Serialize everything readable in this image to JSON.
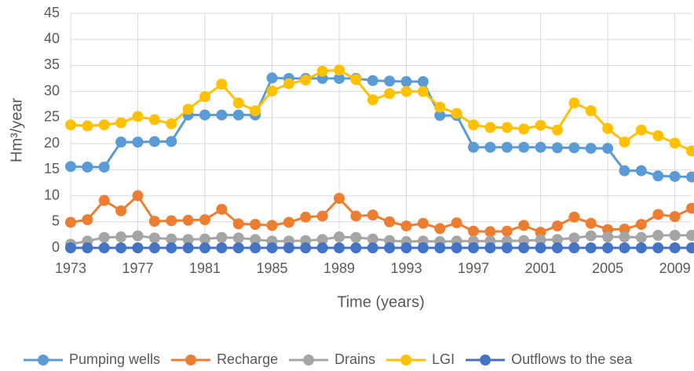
{
  "chart_data": {
    "type": "line",
    "xlabel": "Time (years)",
    "ylabel": "Hm³/year",
    "x": [
      1973,
      1974,
      1975,
      1976,
      1977,
      1978,
      1979,
      1980,
      1981,
      1982,
      1983,
      1984,
      1985,
      1986,
      1987,
      1988,
      1989,
      1990,
      1991,
      1992,
      1993,
      1994,
      1995,
      1996,
      1997,
      1998,
      1999,
      2000,
      2001,
      2002,
      2003,
      2004,
      2005,
      2006,
      2007,
      2008,
      2009,
      2010
    ],
    "xlim": [
      1973,
      2010
    ],
    "xticks": [
      1973,
      1977,
      1981,
      1985,
      1989,
      1993,
      1997,
      2001,
      2005,
      2009
    ],
    "ylim": [
      0,
      45
    ],
    "yticks": [
      0,
      5,
      10,
      15,
      20,
      25,
      30,
      35,
      40,
      45
    ],
    "grid": true,
    "legend": "bottom",
    "series": [
      {
        "name": "Pumping wells",
        "color": "#5b9bd5",
        "values": [
          15.6,
          15.5,
          15.5,
          20.3,
          20.3,
          20.4,
          20.4,
          25.5,
          25.5,
          25.5,
          25.5,
          25.5,
          32.6,
          32.5,
          32.5,
          32.5,
          32.5,
          32.5,
          32.1,
          32.0,
          31.9,
          31.9,
          25.4,
          25.4,
          19.3,
          19.3,
          19.3,
          19.3,
          19.3,
          19.2,
          19.2,
          19.1,
          19.1,
          14.8,
          14.8,
          13.8,
          13.7,
          13.6
        ]
      },
      {
        "name": "Recharge",
        "color": "#ed7d31",
        "values": [
          4.9,
          5.4,
          9.1,
          7.1,
          10.0,
          5.1,
          5.2,
          5.3,
          5.4,
          7.4,
          4.6,
          4.5,
          4.3,
          4.9,
          5.9,
          6.1,
          9.5,
          6.1,
          6.3,
          5.0,
          4.2,
          4.7,
          3.7,
          4.8,
          3.2,
          3.1,
          3.2,
          4.3,
          3.0,
          4.2,
          5.9,
          4.7,
          3.5,
          3.6,
          4.5,
          6.4,
          6.0,
          7.6
        ]
      },
      {
        "name": "Drains",
        "color": "#a5a5a5",
        "values": [
          0.7,
          1.3,
          2.0,
          2.1,
          2.3,
          1.9,
          1.7,
          1.6,
          1.7,
          2.0,
          1.9,
          1.6,
          1.3,
          1.3,
          1.4,
          1.6,
          2.1,
          2.0,
          1.7,
          1.4,
          1.2,
          1.3,
          1.2,
          1.3,
          1.3,
          1.3,
          1.3,
          1.4,
          1.5,
          1.6,
          1.9,
          2.3,
          2.1,
          2.1,
          2.0,
          2.4,
          2.4,
          2.4
        ]
      },
      {
        "name": "LGI",
        "color": "#ffc000",
        "values": [
          23.6,
          23.4,
          23.6,
          24.0,
          25.2,
          24.6,
          23.8,
          26.6,
          29.0,
          31.4,
          27.8,
          26.3,
          30.1,
          31.5,
          32.2,
          33.9,
          34.1,
          32.3,
          28.4,
          29.6,
          30.0,
          30.0,
          27.0,
          25.8,
          23.6,
          23.1,
          23.1,
          22.8,
          23.5,
          22.6,
          27.8,
          26.3,
          22.9,
          20.3,
          22.6,
          21.5,
          20.1,
          18.6
        ]
      },
      {
        "name": "Outflows to the sea",
        "color": "#4472c4",
        "values": [
          0,
          0,
          0,
          0,
          0,
          0,
          0,
          0,
          0,
          0,
          0,
          0,
          0,
          0,
          0,
          0,
          0,
          0,
          0,
          0,
          0,
          0,
          0,
          0,
          0,
          0,
          0,
          0,
          0,
          0,
          0,
          0,
          0,
          0,
          0,
          0,
          0,
          0
        ]
      }
    ]
  }
}
